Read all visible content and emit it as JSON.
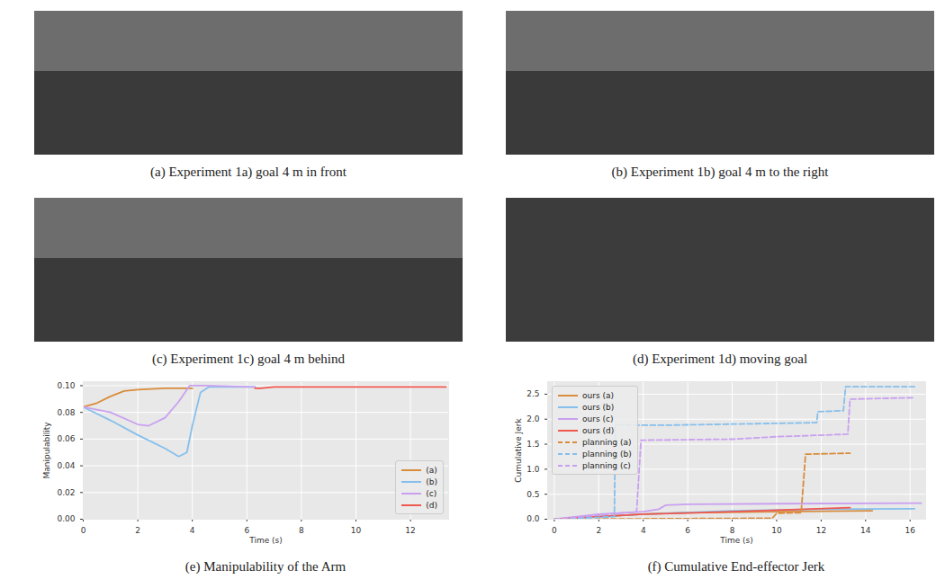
{
  "panels": [
    {
      "caption": "(a) Experiment 1a) goal 4 m in front"
    },
    {
      "caption": "(b) Experiment 1b) goal 4 m to the right"
    },
    {
      "caption": "(c) Experiment 1c) goal 4 m behind"
    },
    {
      "caption": "(d) Experiment 1d) moving goal"
    }
  ],
  "chart_data": [
    {
      "type": "line",
      "caption": "(e) Manipulability of the Arm",
      "x_label": "Time (s)",
      "y_label": "Manipulability",
      "xlim": [
        0,
        13.4
      ],
      "ylim": [
        0,
        0.103
      ],
      "xticks": [
        0,
        2,
        4,
        6,
        8,
        10,
        12
      ],
      "yticks": [
        {
          "value": 0,
          "label": "0.00"
        },
        {
          "value": 0.02,
          "label": "0.02"
        },
        {
          "value": 0.04,
          "label": "0.04"
        },
        {
          "value": 0.06,
          "label": "0.06"
        },
        {
          "value": 0.08,
          "label": "0.08"
        },
        {
          "value": 0.1,
          "label": "0.10"
        }
      ],
      "grid": true,
      "legend": "lower right",
      "series": [
        {
          "name": "(a)",
          "color": "#d98c3c",
          "line_style": "solid",
          "x": [
            0,
            0.5,
            1,
            1.5,
            2,
            3,
            4
          ],
          "values": [
            0.084,
            0.087,
            0.092,
            0.096,
            0.097,
            0.098,
            0.098
          ]
        },
        {
          "name": "(b)",
          "color": "#86bfeb",
          "line_style": "solid",
          "x": [
            0,
            1,
            2,
            3,
            3.5,
            3.8,
            4,
            4.3,
            4.6,
            6.3
          ],
          "values": [
            0.084,
            0.074,
            0.063,
            0.053,
            0.047,
            0.05,
            0.07,
            0.095,
            0.099,
            0.099
          ]
        },
        {
          "name": "(c)",
          "color": "#c9a0f0",
          "line_style": "solid",
          "x": [
            0,
            1,
            2,
            2.4,
            3,
            3.5,
            3.9,
            4.5,
            6.3
          ],
          "values": [
            0.084,
            0.08,
            0.071,
            0.07,
            0.076,
            0.088,
            0.1,
            0.1,
            0.099
          ]
        },
        {
          "name": "(d)",
          "color": "#f0574f",
          "line_style": "solid",
          "x": [
            6.3,
            6.5,
            7,
            13.3
          ],
          "values": [
            0.098,
            0.098,
            0.099,
            0.099
          ]
        }
      ]
    },
    {
      "type": "line",
      "caption": "(f) Cumulative End-effector Jerk",
      "x_label": "Time (s)",
      "y_label": "Cumulative Jerk",
      "xlim": [
        -0.3,
        16.7
      ],
      "ylim": [
        0,
        2.75
      ],
      "xticks": [
        0,
        2,
        4,
        6,
        8,
        10,
        12,
        14,
        16
      ],
      "yticks": [
        {
          "value": 0,
          "label": "0.0"
        },
        0.5,
        {
          "value": 1,
          "label": "1.0"
        },
        1.5,
        {
          "value": 2,
          "label": "2.0"
        },
        2.5
      ],
      "grid": true,
      "legend": "upper left",
      "series": [
        {
          "name": "ours (a)",
          "color": "#d98c3c",
          "line_style": "solid",
          "x": [
            0,
            2,
            4,
            6,
            10,
            14.3
          ],
          "values": [
            0,
            0.05,
            0.1,
            0.13,
            0.15,
            0.17
          ]
        },
        {
          "name": "ours (b)",
          "color": "#86bfeb",
          "line_style": "solid",
          "x": [
            0,
            4,
            8,
            12,
            16.2
          ],
          "values": [
            0,
            0.1,
            0.17,
            0.2,
            0.21
          ]
        },
        {
          "name": "ours (c)",
          "color": "#c9a0f0",
          "line_style": "solid",
          "x": [
            0,
            2,
            4,
            4.7,
            5,
            6,
            10,
            16.5
          ],
          "values": [
            0,
            0.1,
            0.15,
            0.2,
            0.28,
            0.3,
            0.31,
            0.32
          ]
        },
        {
          "name": "ours (d)",
          "color": "#f0574f",
          "line_style": "solid",
          "x": [
            0,
            4,
            8,
            13.3
          ],
          "values": [
            0,
            0.1,
            0.15,
            0.23
          ]
        },
        {
          "name": "planning (a)",
          "color": "#d98c3c",
          "line_style": "dashed",
          "x": [
            0,
            9.8,
            10,
            11.1,
            11.3,
            13.3
          ],
          "values": [
            0,
            0.02,
            0.12,
            0.13,
            1.3,
            1.32
          ]
        },
        {
          "name": "planning (b)",
          "color": "#86bfeb",
          "line_style": "dashed",
          "x": [
            0,
            2.7,
            2.75,
            5,
            11.8,
            11.85,
            13,
            13.1,
            16.2
          ],
          "values": [
            0,
            0.05,
            1.88,
            1.88,
            1.93,
            2.15,
            2.17,
            2.65,
            2.65
          ]
        },
        {
          "name": "planning (c)",
          "color": "#c9a0f0",
          "line_style": "dashed",
          "x": [
            0,
            3.7,
            3.9,
            8,
            10,
            12,
            13.2,
            13.3,
            16.2
          ],
          "values": [
            0,
            0.15,
            1.58,
            1.6,
            1.65,
            1.68,
            1.7,
            2.4,
            2.43
          ]
        }
      ]
    }
  ]
}
